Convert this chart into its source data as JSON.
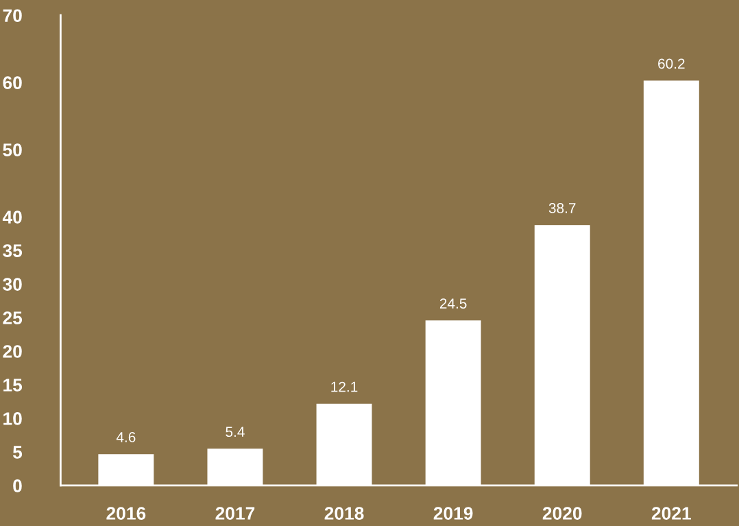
{
  "chart_data": {
    "type": "bar",
    "categories": [
      "2016",
      "2017",
      "2018",
      "2019",
      "2020",
      "2021"
    ],
    "values": [
      4.6,
      5.4,
      12.1,
      24.5,
      38.7,
      60.2
    ],
    "color": "#ffffff",
    "ylim": [
      0,
      70
    ],
    "yticks": [
      0,
      5,
      10,
      15,
      20,
      25,
      30,
      35,
      40,
      50,
      60,
      70
    ],
    "data_labels": true,
    "grid": false
  }
}
